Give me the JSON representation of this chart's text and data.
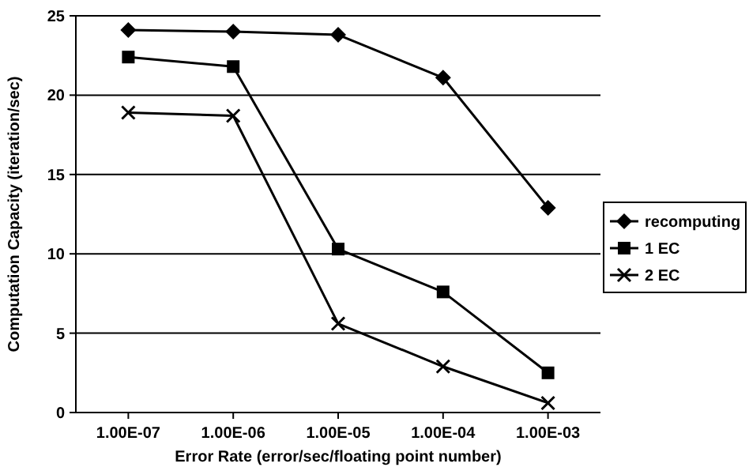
{
  "chart_data": {
    "type": "line",
    "xlabel": "Error Rate (error/sec/floating point number)",
    "ylabel": "Computation Capacity (iteration/sec)",
    "categories": [
      "1.00E-07",
      "1.00E-06",
      "1.00E-05",
      "1.00E-04",
      "1.00E-03"
    ],
    "series": [
      {
        "name": "recomputing",
        "color": "#000000",
        "marker": "diamond",
        "values": [
          24.1,
          24.0,
          23.8,
          21.1,
          12.9
        ]
      },
      {
        "name": "1 EC",
        "color": "#000000",
        "marker": "square",
        "values": [
          22.4,
          21.8,
          10.3,
          7.6,
          2.5
        ]
      },
      {
        "name": "2 EC",
        "color": "#000000",
        "marker": "cross",
        "values": [
          18.9,
          18.7,
          5.6,
          2.9,
          0.6
        ]
      }
    ],
    "ylim": [
      0,
      25
    ],
    "yticks": [
      0,
      5,
      10,
      15,
      20,
      25
    ],
    "grid": "y",
    "legend": "right"
  }
}
